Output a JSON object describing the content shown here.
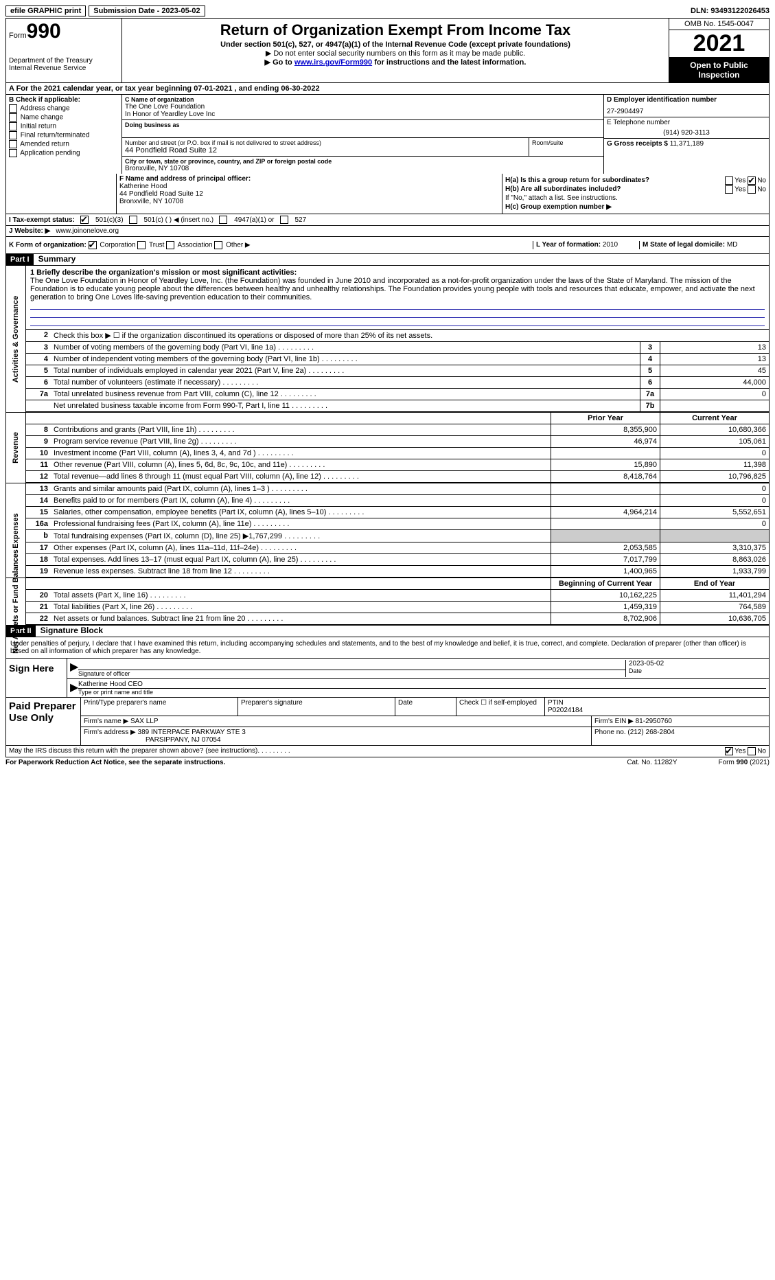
{
  "topbar": {
    "efile": "efile GRAPHIC print",
    "submission": "Submission Date - 2023-05-02",
    "dln": "DLN: 93493122026453"
  },
  "header": {
    "form_label": "Form",
    "form_num": "990",
    "dept": "Department of the Treasury",
    "irs": "Internal Revenue Service",
    "title": "Return of Organization Exempt From Income Tax",
    "sub1": "Under section 501(c), 527, or 4947(a)(1) of the Internal Revenue Code (except private foundations)",
    "sub2": "▶ Do not enter social security numbers on this form as it may be made public.",
    "sub3_pre": "▶ Go to ",
    "sub3_link": "www.irs.gov/Form990",
    "sub3_post": " for instructions and the latest information.",
    "omb": "OMB No. 1545-0047",
    "year": "2021",
    "open": "Open to Public Inspection"
  },
  "rowA": {
    "text": "A For the 2021 calendar year, or tax year beginning 07-01-2021   , and ending 06-30-2022"
  },
  "B": {
    "label": "B Check if applicable:",
    "items": [
      "Address change",
      "Name change",
      "Initial return",
      "Final return/terminated",
      "Amended return",
      "Application pending"
    ]
  },
  "C": {
    "name_lbl": "C Name of organization",
    "name1": "The One Love Foundation",
    "name2": "In Honor of Yeardley Love Inc",
    "dba_lbl": "Doing business as",
    "addr_lbl": "Number and street (or P.O. box if mail is not delivered to street address)",
    "addr": "44 Pondfield Road Suite 12",
    "room_lbl": "Room/suite",
    "city_lbl": "City or town, state or province, country, and ZIP or foreign postal code",
    "city": "Bronxville, NY  10708"
  },
  "D": {
    "ein_lbl": "D Employer identification number",
    "ein": "27-2904497",
    "phone_lbl": "E Telephone number",
    "phone": "(914) 920-3113",
    "gross_lbl": "G Gross receipts $",
    "gross": "11,371,189"
  },
  "F": {
    "lbl": "F  Name and address of principal officer:",
    "name": "Katherine Hood",
    "addr1": "44 Pondfield Road Suite 12",
    "addr2": "Bronxville, NY  10708"
  },
  "H": {
    "a": "H(a)  Is this a group return for subordinates?",
    "b": "H(b)  Are all subordinates included?",
    "note": "If \"No,\" attach a list. See instructions.",
    "c": "H(c)  Group exemption number ▶",
    "yes": "Yes",
    "no": "No"
  },
  "I": {
    "lbl": "I   Tax-exempt status:",
    "opts": [
      "501(c)(3)",
      "501(c) (  ) ◀ (insert no.)",
      "4947(a)(1) or",
      "527"
    ]
  },
  "J": {
    "lbl": "J   Website: ▶",
    "val": "www.joinonelove.org"
  },
  "K": {
    "lbl": "K Form of organization:",
    "opts": [
      "Corporation",
      "Trust",
      "Association",
      "Other ▶"
    ]
  },
  "L": {
    "lbl": "L Year of formation:",
    "val": "2010"
  },
  "M": {
    "lbl": "M State of legal domicile:",
    "val": "MD"
  },
  "part1": {
    "hdr": "Part I",
    "title": "Summary"
  },
  "side": {
    "gov": "Activities & Governance",
    "rev": "Revenue",
    "exp": "Expenses",
    "net": "Net Assets or Fund Balances"
  },
  "summary": {
    "q1": "1  Briefly describe the organization's mission or most significant activities:",
    "mission": "The One Love Foundation in Honor of Yeardley Love, Inc. (the Foundation) was founded in June 2010 and incorporated as a not-for-profit organization under the laws of the State of Maryland. The mission of the Foundation is to educate young people about the differences between healthy and unhealthy relationships. The Foundation provides young people with tools and resources that educate, empower, and activate the next generation to bring One Loves life-saving prevention education to their communities.",
    "q2": "Check this box ▶ ☐  if the organization discontinued its operations or disposed of more than 25% of its net assets.",
    "lines_gov": [
      {
        "n": "3",
        "d": "Number of voting members of the governing body (Part VI, line 1a)",
        "box": "3",
        "v": "13"
      },
      {
        "n": "4",
        "d": "Number of independent voting members of the governing body (Part VI, line 1b)",
        "box": "4",
        "v": "13"
      },
      {
        "n": "5",
        "d": "Total number of individuals employed in calendar year 2021 (Part V, line 2a)",
        "box": "5",
        "v": "45"
      },
      {
        "n": "6",
        "d": "Total number of volunteers (estimate if necessary)",
        "box": "6",
        "v": "44,000"
      },
      {
        "n": "7a",
        "d": "Total unrelated business revenue from Part VIII, column (C), line 12",
        "box": "7a",
        "v": "0"
      },
      {
        "n": "",
        "d": "Net unrelated business taxable income from Form 990-T, Part I, line 11",
        "box": "7b",
        "v": ""
      }
    ],
    "hdr_prior": "Prior Year",
    "hdr_curr": "Current Year",
    "rev": [
      {
        "n": "8",
        "d": "Contributions and grants (Part VIII, line 1h)",
        "p": "8,355,900",
        "c": "10,680,366"
      },
      {
        "n": "9",
        "d": "Program service revenue (Part VIII, line 2g)",
        "p": "46,974",
        "c": "105,061"
      },
      {
        "n": "10",
        "d": "Investment income (Part VIII, column (A), lines 3, 4, and 7d )",
        "p": "",
        "c": "0"
      },
      {
        "n": "11",
        "d": "Other revenue (Part VIII, column (A), lines 5, 6d, 8c, 9c, 10c, and 11e)",
        "p": "15,890",
        "c": "11,398"
      },
      {
        "n": "12",
        "d": "Total revenue—add lines 8 through 11 (must equal Part VIII, column (A), line 12)",
        "p": "8,418,764",
        "c": "10,796,825"
      }
    ],
    "exp": [
      {
        "n": "13",
        "d": "Grants and similar amounts paid (Part IX, column (A), lines 1–3 )",
        "p": "",
        "c": "0"
      },
      {
        "n": "14",
        "d": "Benefits paid to or for members (Part IX, column (A), line 4)",
        "p": "",
        "c": "0"
      },
      {
        "n": "15",
        "d": "Salaries, other compensation, employee benefits (Part IX, column (A), lines 5–10)",
        "p": "4,964,214",
        "c": "5,552,651"
      },
      {
        "n": "16a",
        "d": "Professional fundraising fees (Part IX, column (A), line 11e)",
        "p": "",
        "c": "0"
      },
      {
        "n": "b",
        "d": "Total fundraising expenses (Part IX, column (D), line 25) ▶1,767,299",
        "p": "shade",
        "c": "shade"
      },
      {
        "n": "17",
        "d": "Other expenses (Part IX, column (A), lines 11a–11d, 11f–24e)",
        "p": "2,053,585",
        "c": "3,310,375"
      },
      {
        "n": "18",
        "d": "Total expenses. Add lines 13–17 (must equal Part IX, column (A), line 25)",
        "p": "7,017,799",
        "c": "8,863,026"
      },
      {
        "n": "19",
        "d": "Revenue less expenses. Subtract line 18 from line 12",
        "p": "1,400,965",
        "c": "1,933,799"
      }
    ],
    "hdr_beg": "Beginning of Current Year",
    "hdr_end": "End of Year",
    "net": [
      {
        "n": "20",
        "d": "Total assets (Part X, line 16)",
        "p": "10,162,225",
        "c": "11,401,294"
      },
      {
        "n": "21",
        "d": "Total liabilities (Part X, line 26)",
        "p": "1,459,319",
        "c": "764,589"
      },
      {
        "n": "22",
        "d": "Net assets or fund balances. Subtract line 21 from line 20",
        "p": "8,702,906",
        "c": "10,636,705"
      }
    ]
  },
  "part2": {
    "hdr": "Part II",
    "title": "Signature Block"
  },
  "sig": {
    "decl": "Under penalties of perjury, I declare that I have examined this return, including accompanying schedules and statements, and to the best of my knowledge and belief, it is true, correct, and complete. Declaration of preparer (other than officer) is based on all information of which preparer has any knowledge.",
    "sign_here": "Sign Here",
    "sig_officer": "Signature of officer",
    "date_lbl": "Date",
    "date": "2023-05-02",
    "name": "Katherine Hood CEO",
    "name_lbl": "Type or print name and title"
  },
  "prep": {
    "lbl": "Paid Preparer Use Only",
    "r1": {
      "a": "Print/Type preparer's name",
      "b": "Preparer's signature",
      "c": "Date",
      "d": "Check ☐ if self-employed",
      "e": "PTIN",
      "ev": "P02024184"
    },
    "r2": {
      "a": "Firm's name  ▶",
      "av": "SAX LLP",
      "b": "Firm's EIN ▶",
      "bv": "81-2950760"
    },
    "r3": {
      "a": "Firm's address ▶",
      "av1": "389 INTERPACE PARKWAY STE 3",
      "av2": "PARSIPPANY, NJ  07054",
      "b": "Phone no.",
      "bv": "(212) 268-2804"
    }
  },
  "bottom": {
    "q": "May the IRS discuss this return with the preparer shown above? (see instructions)",
    "yes": "Yes",
    "no": "No"
  },
  "footer": {
    "l": "For Paperwork Reduction Act Notice, see the separate instructions.",
    "c": "Cat. No. 11282Y",
    "r": "Form 990 (2021)"
  }
}
